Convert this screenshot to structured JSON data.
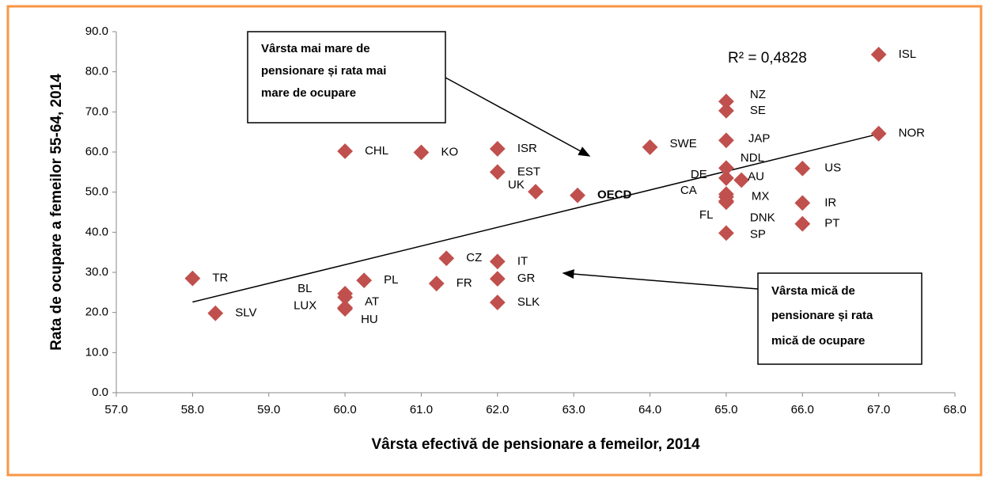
{
  "chart_data": {
    "type": "scatter",
    "x_label": "Vârsta efectivă de pensionare a femeilor, 2014",
    "y_label": "Rata de ocupare a femeilor 55-64, 2014",
    "color": "#c0504d",
    "series": [
      {
        "name": null,
        "labels": [
          "TR",
          "SLV",
          "BL",
          "AT",
          "LUX",
          "HU",
          "PL",
          "FR",
          "CZ",
          "IT",
          "GR",
          "SLK",
          "CHL",
          "KO",
          "ISR",
          "EST",
          "UK",
          "OECD",
          "SWE",
          "NZ",
          "SE",
          "JAP",
          "NDL",
          "DE",
          "AU",
          "CA",
          "MX",
          "FL",
          "DNK",
          "SP",
          "US",
          "IR",
          "PT",
          "ISL",
          "NOR"
        ],
        "x": [
          58.0,
          58.3,
          60.0,
          60.0,
          60.0,
          60.0,
          60.25,
          61.2,
          61.33,
          62.0,
          62.0,
          62.0,
          60.0,
          61.0,
          62.0,
          62.0,
          62.5,
          63.05,
          64.0,
          65.0,
          65.0,
          65.0,
          65.0,
          65.0,
          65.2,
          65.0,
          65.0,
          65.0,
          65.0,
          65.0,
          66.0,
          66.0,
          66.0,
          67.0,
          67.0
        ],
        "values": [
          28.5,
          19.8,
          24.7,
          23.8,
          21.2,
          20.9,
          28.0,
          27.2,
          33.5,
          32.7,
          28.4,
          22.5,
          60.2,
          59.9,
          60.8,
          55.0,
          50.1,
          49.2,
          61.2,
          72.6,
          70.3,
          62.9,
          56.0,
          53.5,
          53.0,
          49.5,
          48.8,
          47.8,
          47.5,
          39.8,
          55.9,
          47.3,
          42.1,
          84.3,
          64.6
        ]
      }
    ],
    "trendline": {
      "x": [
        58.0,
        67.0
      ],
      "y": [
        22.6,
        64.5
      ],
      "label": "R² = 0,4828"
    },
    "annotations": [
      {
        "lines": [
          "Vârsta mai mare de",
          "pensionare și rata mai",
          "mare de ocupare"
        ]
      },
      {
        "lines": [
          "Vârsta mică de",
          "pensionare și rata",
          "mică de ocupare"
        ]
      }
    ],
    "xlim": [
      57,
      68
    ],
    "xticks": [
      {
        "value": 57,
        "label": "57.0"
      },
      {
        "value": 58,
        "label": "58.0"
      },
      {
        "value": 59,
        "label": "59.0"
      },
      {
        "value": 60,
        "label": "60.0"
      },
      {
        "value": 61,
        "label": "61.0"
      },
      {
        "value": 62,
        "label": "62.0"
      },
      {
        "value": 63,
        "label": "63.0"
      },
      {
        "value": 64,
        "label": "64.0"
      },
      {
        "value": 65,
        "label": "65.0"
      },
      {
        "value": 66,
        "label": "66.0"
      },
      {
        "value": 67,
        "label": "67.0"
      },
      {
        "value": 68,
        "label": "68.0"
      }
    ],
    "ylim": [
      0,
      90
    ],
    "yticks": [
      {
        "value": 0,
        "label": "0.0"
      },
      {
        "value": 10,
        "label": "10.0"
      },
      {
        "value": 20,
        "label": "20.0"
      },
      {
        "value": 30,
        "label": "30.0"
      },
      {
        "value": 40,
        "label": "40.0"
      },
      {
        "value": 50,
        "label": "50.0"
      },
      {
        "value": 60,
        "label": "60.0"
      },
      {
        "value": 70,
        "label": "70.0"
      },
      {
        "value": 80,
        "label": "80.0"
      },
      {
        "value": 90,
        "label": "90.0"
      }
    ]
  }
}
